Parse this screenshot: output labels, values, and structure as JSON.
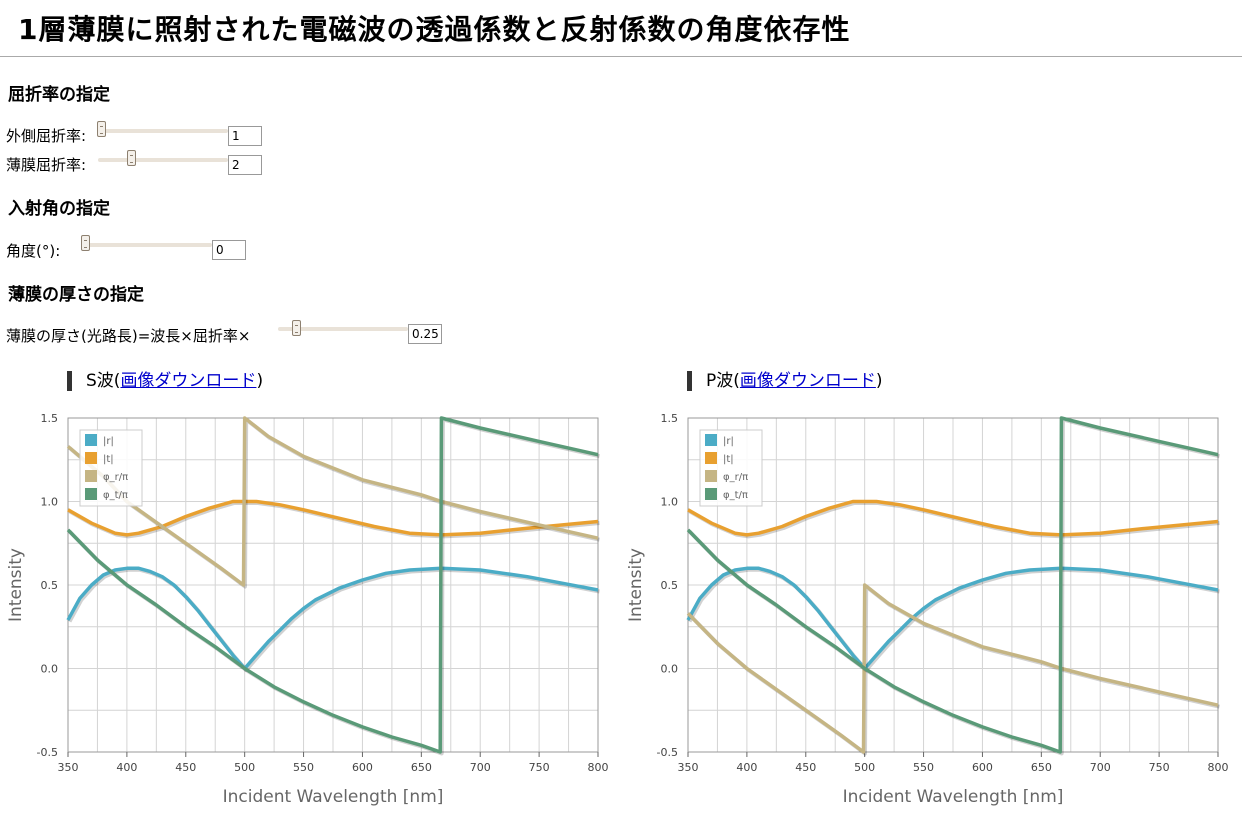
{
  "page": {
    "title": "1層薄膜に照射された電磁波の透過係数と反射係数の角度依存性"
  },
  "refractive": {
    "heading": "屈折率の指定",
    "outer_label": "外側屈折率:",
    "outer_value": "1",
    "film_label": "薄膜屈折率:",
    "film_value": "2"
  },
  "incidence": {
    "heading": "入射角の指定",
    "label": "角度(°):",
    "value": "0"
  },
  "thickness": {
    "heading": "薄膜の厚さの指定",
    "label": "薄膜の厚さ(光路長)=波長×屈折率×",
    "value": "0.25"
  },
  "charts": [
    {
      "wave_label": "S波(",
      "download_link": "画像ダウンロード",
      "close_paren": ")"
    },
    {
      "wave_label": "P波(",
      "download_link": "画像ダウンロード",
      "close_paren": ")"
    }
  ],
  "colors": {
    "r": "#4bacc6",
    "t": "#e8a030",
    "phi_r": "#c5b584",
    "phi_t": "#5a9a78"
  },
  "chart_data": [
    {
      "type": "line",
      "title": "S波",
      "xlabel": "Incident Wavelength [nm]",
      "ylabel": "Intensity",
      "xlim": [
        350,
        800
      ],
      "ylim": [
        -0.5,
        1.5
      ],
      "xticks": [
        "350",
        "400",
        "450",
        "500",
        "550",
        "600",
        "650",
        "700",
        "750",
        "800"
      ],
      "yticks": [
        "1.5",
        "1.0",
        "0.5",
        "0.0",
        "-0.5"
      ],
      "grid": true,
      "legend_position": "top-left",
      "series": [
        {
          "name": "|r|",
          "color": "#4bacc6",
          "points": [
            [
              350,
              0.29
            ],
            [
              360,
              0.42
            ],
            [
              370,
              0.5
            ],
            [
              380,
              0.56
            ],
            [
              390,
              0.59
            ],
            [
              400,
              0.6
            ],
            [
              410,
              0.6
            ],
            [
              420,
              0.58
            ],
            [
              430,
              0.55
            ],
            [
              440,
              0.5
            ],
            [
              450,
              0.43
            ],
            [
              460,
              0.35
            ],
            [
              470,
              0.26
            ],
            [
              480,
              0.17
            ],
            [
              490,
              0.08
            ],
            [
              500,
              0.0
            ],
            [
              510,
              0.08
            ],
            [
              520,
              0.16
            ],
            [
              530,
              0.23
            ],
            [
              540,
              0.3
            ],
            [
              550,
              0.36
            ],
            [
              560,
              0.41
            ],
            [
              580,
              0.48
            ],
            [
              600,
              0.53
            ],
            [
              620,
              0.57
            ],
            [
              640,
              0.59
            ],
            [
              667,
              0.6
            ],
            [
              700,
              0.59
            ],
            [
              740,
              0.55
            ],
            [
              770,
              0.51
            ],
            [
              800,
              0.47
            ]
          ]
        },
        {
          "name": "|t|",
          "color": "#e8a030",
          "points": [
            [
              350,
              0.95
            ],
            [
              370,
              0.87
            ],
            [
              390,
              0.81
            ],
            [
              400,
              0.8
            ],
            [
              410,
              0.81
            ],
            [
              430,
              0.85
            ],
            [
              450,
              0.91
            ],
            [
              470,
              0.96
            ],
            [
              490,
              1.0
            ],
            [
              500,
              1.0
            ],
            [
              510,
              1.0
            ],
            [
              530,
              0.98
            ],
            [
              550,
              0.95
            ],
            [
              580,
              0.9
            ],
            [
              610,
              0.85
            ],
            [
              640,
              0.81
            ],
            [
              667,
              0.8
            ],
            [
              700,
              0.81
            ],
            [
              740,
              0.84
            ],
            [
              770,
              0.86
            ],
            [
              800,
              0.88
            ]
          ]
        },
        {
          "name": "φ_r/π",
          "color": "#c5b584",
          "points": [
            [
              350,
              1.33
            ],
            [
              380,
              1.15
            ],
            [
              400,
              1.0
            ],
            [
              420,
              0.9
            ],
            [
              440,
              0.8
            ],
            [
              460,
              0.7
            ],
            [
              480,
              0.6
            ],
            [
              499,
              0.5
            ],
            [
              500,
              1.5
            ],
            [
              520,
              1.39
            ],
            [
              550,
              1.27
            ],
            [
              600,
              1.13
            ],
            [
              650,
              1.04
            ],
            [
              667,
              1.0
            ],
            [
              700,
              0.94
            ],
            [
              750,
              0.86
            ],
            [
              800,
              0.78
            ]
          ]
        },
        {
          "name": "φ_t/π",
          "color": "#5a9a78",
          "points": [
            [
              350,
              0.83
            ],
            [
              375,
              0.65
            ],
            [
              400,
              0.5
            ],
            [
              425,
              0.38
            ],
            [
              450,
              0.25
            ],
            [
              475,
              0.13
            ],
            [
              500,
              0.0
            ],
            [
              525,
              -0.11
            ],
            [
              550,
              -0.2
            ],
            [
              575,
              -0.28
            ],
            [
              600,
              -0.35
            ],
            [
              625,
              -0.41
            ],
            [
              650,
              -0.46
            ],
            [
              666,
              -0.5
            ],
            [
              667,
              1.5
            ],
            [
              700,
              1.44
            ],
            [
              750,
              1.36
            ],
            [
              800,
              1.28
            ]
          ]
        }
      ]
    },
    {
      "type": "line",
      "title": "P波",
      "xlabel": "Incident Wavelength [nm]",
      "ylabel": "Intensity",
      "xlim": [
        350,
        800
      ],
      "ylim": [
        -0.5,
        1.5
      ],
      "xticks": [
        "350",
        "400",
        "450",
        "500",
        "550",
        "600",
        "650",
        "700",
        "750",
        "800"
      ],
      "yticks": [
        "1.5",
        "1.0",
        "0.5",
        "0.0",
        "-0.5"
      ],
      "grid": true,
      "legend_position": "top-left",
      "series": [
        {
          "name": "|r|",
          "color": "#4bacc6",
          "points": [
            [
              350,
              0.29
            ],
            [
              360,
              0.42
            ],
            [
              370,
              0.5
            ],
            [
              380,
              0.56
            ],
            [
              390,
              0.59
            ],
            [
              400,
              0.6
            ],
            [
              410,
              0.6
            ],
            [
              420,
              0.58
            ],
            [
              430,
              0.55
            ],
            [
              440,
              0.5
            ],
            [
              450,
              0.43
            ],
            [
              460,
              0.35
            ],
            [
              470,
              0.26
            ],
            [
              480,
              0.17
            ],
            [
              490,
              0.08
            ],
            [
              500,
              0.0
            ],
            [
              510,
              0.08
            ],
            [
              520,
              0.16
            ],
            [
              530,
              0.23
            ],
            [
              540,
              0.3
            ],
            [
              550,
              0.36
            ],
            [
              560,
              0.41
            ],
            [
              580,
              0.48
            ],
            [
              600,
              0.53
            ],
            [
              620,
              0.57
            ],
            [
              640,
              0.59
            ],
            [
              667,
              0.6
            ],
            [
              700,
              0.59
            ],
            [
              740,
              0.55
            ],
            [
              770,
              0.51
            ],
            [
              800,
              0.47
            ]
          ]
        },
        {
          "name": "|t|",
          "color": "#e8a030",
          "points": [
            [
              350,
              0.95
            ],
            [
              370,
              0.87
            ],
            [
              390,
              0.81
            ],
            [
              400,
              0.8
            ],
            [
              410,
              0.81
            ],
            [
              430,
              0.85
            ],
            [
              450,
              0.91
            ],
            [
              470,
              0.96
            ],
            [
              490,
              1.0
            ],
            [
              500,
              1.0
            ],
            [
              510,
              1.0
            ],
            [
              530,
              0.98
            ],
            [
              550,
              0.95
            ],
            [
              580,
              0.9
            ],
            [
              610,
              0.85
            ],
            [
              640,
              0.81
            ],
            [
              667,
              0.8
            ],
            [
              700,
              0.81
            ],
            [
              740,
              0.84
            ],
            [
              770,
              0.86
            ],
            [
              800,
              0.88
            ]
          ]
        },
        {
          "name": "φ_r/π",
          "color": "#c5b584",
          "points": [
            [
              350,
              0.33
            ],
            [
              375,
              0.15
            ],
            [
              400,
              0.0
            ],
            [
              420,
              -0.1
            ],
            [
              440,
              -0.2
            ],
            [
              460,
              -0.3
            ],
            [
              480,
              -0.4
            ],
            [
              499,
              -0.5
            ],
            [
              500,
              0.5
            ],
            [
              520,
              0.39
            ],
            [
              550,
              0.27
            ],
            [
              600,
              0.13
            ],
            [
              650,
              0.04
            ],
            [
              667,
              0.0
            ],
            [
              700,
              -0.06
            ],
            [
              750,
              -0.14
            ],
            [
              800,
              -0.22
            ]
          ]
        },
        {
          "name": "φ_t/π",
          "color": "#5a9a78",
          "points": [
            [
              350,
              0.83
            ],
            [
              375,
              0.65
            ],
            [
              400,
              0.5
            ],
            [
              425,
              0.38
            ],
            [
              450,
              0.25
            ],
            [
              475,
              0.13
            ],
            [
              500,
              0.0
            ],
            [
              525,
              -0.11
            ],
            [
              550,
              -0.2
            ],
            [
              575,
              -0.28
            ],
            [
              600,
              -0.35
            ],
            [
              625,
              -0.41
            ],
            [
              650,
              -0.46
            ],
            [
              666,
              -0.5
            ],
            [
              667,
              1.5
            ],
            [
              700,
              1.44
            ],
            [
              750,
              1.36
            ],
            [
              800,
              1.28
            ]
          ]
        }
      ]
    }
  ]
}
